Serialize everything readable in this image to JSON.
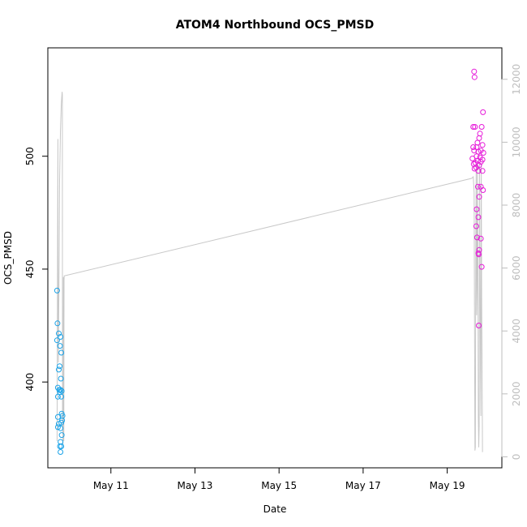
{
  "chart_data": {
    "type": "scatter",
    "title": "ATOM4 Northbound OCS_PMSD",
    "xlabel": "Date",
    "ylabel": "OCS_PMSD",
    "x_ticks": [
      "May 11",
      "May 13",
      "May 15",
      "May 17",
      "May 19"
    ],
    "x_tick_days": [
      11,
      13,
      15,
      17,
      19
    ],
    "xlim_days": [
      9.5,
      20.3
    ],
    "ylim": [
      362,
      548
    ],
    "y_ticks": [
      400,
      450,
      500
    ],
    "y2lim": [
      -350,
      13000
    ],
    "y2_ticks": [
      0,
      2000,
      4000,
      6000,
      8000,
      10000,
      12000
    ],
    "colors": {
      "series1": "#1aa3e8",
      "series2": "#e619d9",
      "line": "#c8c8c8"
    },
    "series": [
      {
        "axis": "left",
        "color": "#1aa3e8",
        "points": [
          [
            9.72,
            440.5
          ],
          [
            9.73,
            426
          ],
          [
            9.72,
            418.5
          ],
          [
            9.76,
            421.5
          ],
          [
            9.8,
            420
          ],
          [
            9.79,
            416
          ],
          [
            9.82,
            413
          ],
          [
            9.78,
            407
          ],
          [
            9.76,
            405.5
          ],
          [
            9.81,
            401.5
          ],
          [
            9.74,
            397.5
          ],
          [
            9.77,
            396.5
          ],
          [
            9.8,
            396.5
          ],
          [
            9.83,
            396
          ],
          [
            9.79,
            395.5
          ],
          [
            9.74,
            393.5
          ],
          [
            9.82,
            393.5
          ],
          [
            9.83,
            386
          ],
          [
            9.85,
            385
          ],
          [
            9.74,
            384.5
          ],
          [
            9.76,
            381.5
          ],
          [
            9.84,
            383
          ],
          [
            9.82,
            382
          ],
          [
            9.74,
            380
          ],
          [
            9.8,
            379.5
          ],
          [
            9.83,
            376.5
          ],
          [
            9.8,
            373.5
          ],
          [
            9.79,
            371.5
          ],
          [
            9.82,
            371.5
          ],
          [
            9.8,
            369
          ]
        ]
      },
      {
        "axis": "left",
        "color": "#e619d9",
        "points": [
          [
            19.64,
            537.5
          ],
          [
            19.65,
            535
          ],
          [
            19.85,
            519.5
          ],
          [
            19.62,
            513
          ],
          [
            19.66,
            513
          ],
          [
            19.82,
            513
          ],
          [
            19.78,
            510
          ],
          [
            19.76,
            508
          ],
          [
            19.72,
            506
          ],
          [
            19.84,
            505
          ],
          [
            19.62,
            504
          ],
          [
            19.7,
            504
          ],
          [
            19.64,
            502.5
          ],
          [
            19.8,
            502.5
          ],
          [
            19.74,
            502
          ],
          [
            19.86,
            501.5
          ],
          [
            19.7,
            500
          ],
          [
            19.78,
            499.5
          ],
          [
            19.6,
            499
          ],
          [
            19.84,
            498.5
          ],
          [
            19.73,
            498
          ],
          [
            19.8,
            497.5
          ],
          [
            19.67,
            497
          ],
          [
            19.63,
            496.5
          ],
          [
            19.76,
            496
          ],
          [
            19.69,
            495
          ],
          [
            19.65,
            494.5
          ],
          [
            19.74,
            493.5
          ],
          [
            19.84,
            493.5
          ],
          [
            19.73,
            486.5
          ],
          [
            19.8,
            486.5
          ],
          [
            19.85,
            485
          ],
          [
            19.76,
            482
          ],
          [
            19.7,
            476.5
          ],
          [
            19.74,
            473
          ],
          [
            19.69,
            469
          ],
          [
            19.71,
            464
          ],
          [
            19.8,
            463.5
          ],
          [
            19.76,
            458.5
          ],
          [
            19.74,
            457
          ],
          [
            19.75,
            456.5
          ],
          [
            19.82,
            451
          ],
          [
            19.75,
            425
          ]
        ]
      },
      {
        "axis": "right",
        "color": "#c8c8c8",
        "type": "line",
        "points": [
          [
            9.72,
            500
          ],
          [
            9.73,
            6000
          ],
          [
            9.74,
            10100
          ],
          [
            9.745,
            4500
          ],
          [
            9.75,
            3000
          ],
          [
            9.76,
            4800
          ],
          [
            9.77,
            6500
          ],
          [
            9.78,
            8800
          ],
          [
            9.8,
            10400
          ],
          [
            9.82,
            11200
          ],
          [
            9.84,
            11600
          ],
          [
            9.845,
            11500
          ],
          [
            9.85,
            1200
          ],
          [
            9.86,
            400
          ],
          [
            9.87,
            5700
          ],
          [
            9.875,
            5700
          ],
          [
            9.88,
            500
          ],
          [
            9.885,
            5600
          ],
          [
            9.89,
            5750
          ],
          [
            19.58,
            8850
          ],
          [
            19.62,
            8900
          ],
          [
            19.64,
            8400
          ],
          [
            19.65,
            4000
          ],
          [
            19.66,
            200
          ],
          [
            19.67,
            300
          ],
          [
            19.68,
            7000
          ],
          [
            19.69,
            9300
          ],
          [
            19.7,
            4500
          ],
          [
            19.71,
            5400
          ],
          [
            19.72,
            9300
          ],
          [
            19.73,
            7000
          ],
          [
            19.74,
            1300
          ],
          [
            19.75,
            300
          ],
          [
            19.76,
            1000
          ],
          [
            19.77,
            9300
          ],
          [
            19.78,
            6500
          ],
          [
            19.79,
            2800
          ],
          [
            19.8,
            1300
          ],
          [
            19.81,
            9300
          ],
          [
            19.82,
            5000
          ],
          [
            19.83,
            2800
          ],
          [
            19.84,
            150
          ]
        ]
      }
    ]
  }
}
